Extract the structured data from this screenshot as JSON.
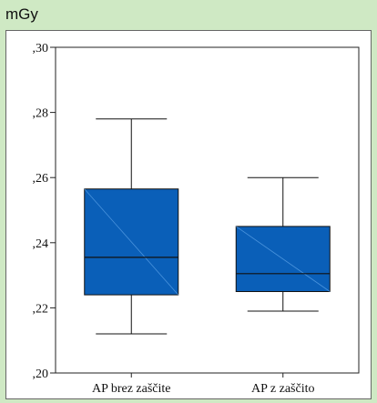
{
  "unit_label": "mGy",
  "chart_data": {
    "type": "boxplot",
    "title": "",
    "xlabel": "",
    "ylabel": "mGy",
    "ylim": [
      0.2,
      0.3
    ],
    "yticks": [
      0.2,
      0.22,
      0.24,
      0.26,
      0.28,
      0.3
    ],
    "ytick_labels": [
      ",20",
      ",22",
      ",24",
      ",26",
      ",28",
      ",30"
    ],
    "categories": [
      "AP  brez zaščite",
      "AP  z zaščito"
    ],
    "boxes": [
      {
        "category": "AP  brez zaščite",
        "whisker_low": 0.212,
        "q1": 0.224,
        "median": 0.2355,
        "q3": 0.2565,
        "whisker_high": 0.278
      },
      {
        "category": "AP  z zaščito",
        "whisker_low": 0.219,
        "q1": 0.225,
        "median": 0.2305,
        "q3": 0.245,
        "whisker_high": 0.26
      }
    ],
    "box_color": "#0a5fb8",
    "grid": false
  }
}
